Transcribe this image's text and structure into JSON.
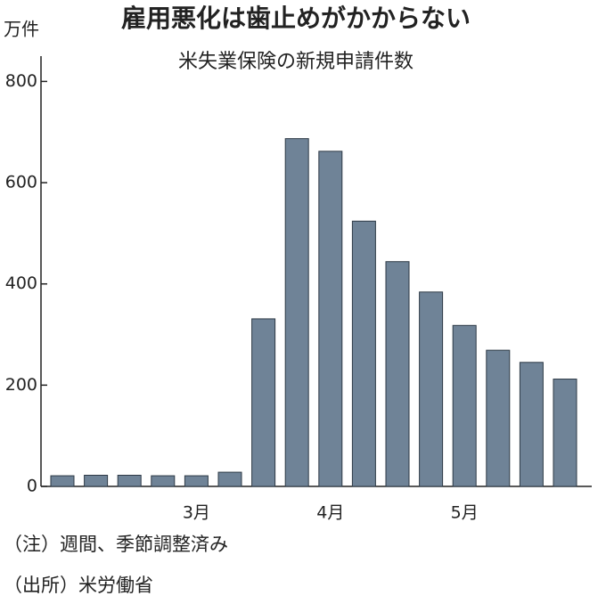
{
  "chart_data": {
    "type": "bar",
    "title": "雇用悪化は歯止めがかからない",
    "subtitle": "米失業保険の新規申請件数",
    "y_label": "万件",
    "categories": [
      null,
      null,
      null,
      null,
      "3月",
      null,
      null,
      null,
      "4月",
      null,
      null,
      null,
      "5月",
      null,
      null,
      null
    ],
    "values": [
      21,
      22,
      22,
      21,
      21,
      28,
      331,
      687,
      662,
      524,
      444,
      384,
      318,
      269,
      245,
      212
    ],
    "color": "#6f8397",
    "ylim": [
      0,
      850
    ],
    "yticks": [
      0,
      200,
      400,
      600,
      800
    ],
    "grid": false,
    "notes": [
      "（注）週間、季節調整済み",
      "（出所）米労働省"
    ]
  }
}
